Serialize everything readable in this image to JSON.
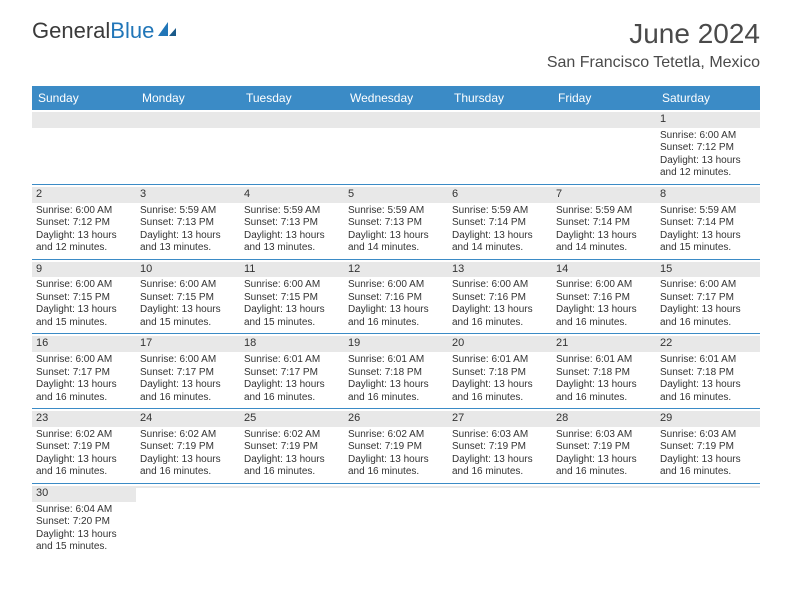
{
  "brand": {
    "part1": "General",
    "part2": "Blue"
  },
  "title": "June 2024",
  "location": "San Francisco Tetetla, Mexico",
  "colors": {
    "header_bg": "#3b8bc6",
    "header_text": "#ffffff",
    "daynum_bg": "#e8e8e8",
    "row_border": "#3b8bc6",
    "text": "#333333",
    "brand_blue": "#2176b8"
  },
  "weekdays": [
    "Sunday",
    "Monday",
    "Tuesday",
    "Wednesday",
    "Thursday",
    "Friday",
    "Saturday"
  ],
  "weeks": [
    [
      null,
      null,
      null,
      null,
      null,
      null,
      {
        "n": "1",
        "sunrise": "Sunrise: 6:00 AM",
        "sunset": "Sunset: 7:12 PM",
        "dl1": "Daylight: 13 hours",
        "dl2": "and 12 minutes."
      }
    ],
    [
      {
        "n": "2",
        "sunrise": "Sunrise: 6:00 AM",
        "sunset": "Sunset: 7:12 PM",
        "dl1": "Daylight: 13 hours",
        "dl2": "and 12 minutes."
      },
      {
        "n": "3",
        "sunrise": "Sunrise: 5:59 AM",
        "sunset": "Sunset: 7:13 PM",
        "dl1": "Daylight: 13 hours",
        "dl2": "and 13 minutes."
      },
      {
        "n": "4",
        "sunrise": "Sunrise: 5:59 AM",
        "sunset": "Sunset: 7:13 PM",
        "dl1": "Daylight: 13 hours",
        "dl2": "and 13 minutes."
      },
      {
        "n": "5",
        "sunrise": "Sunrise: 5:59 AM",
        "sunset": "Sunset: 7:13 PM",
        "dl1": "Daylight: 13 hours",
        "dl2": "and 14 minutes."
      },
      {
        "n": "6",
        "sunrise": "Sunrise: 5:59 AM",
        "sunset": "Sunset: 7:14 PM",
        "dl1": "Daylight: 13 hours",
        "dl2": "and 14 minutes."
      },
      {
        "n": "7",
        "sunrise": "Sunrise: 5:59 AM",
        "sunset": "Sunset: 7:14 PM",
        "dl1": "Daylight: 13 hours",
        "dl2": "and 14 minutes."
      },
      {
        "n": "8",
        "sunrise": "Sunrise: 5:59 AM",
        "sunset": "Sunset: 7:14 PM",
        "dl1": "Daylight: 13 hours",
        "dl2": "and 15 minutes."
      }
    ],
    [
      {
        "n": "9",
        "sunrise": "Sunrise: 6:00 AM",
        "sunset": "Sunset: 7:15 PM",
        "dl1": "Daylight: 13 hours",
        "dl2": "and 15 minutes."
      },
      {
        "n": "10",
        "sunrise": "Sunrise: 6:00 AM",
        "sunset": "Sunset: 7:15 PM",
        "dl1": "Daylight: 13 hours",
        "dl2": "and 15 minutes."
      },
      {
        "n": "11",
        "sunrise": "Sunrise: 6:00 AM",
        "sunset": "Sunset: 7:15 PM",
        "dl1": "Daylight: 13 hours",
        "dl2": "and 15 minutes."
      },
      {
        "n": "12",
        "sunrise": "Sunrise: 6:00 AM",
        "sunset": "Sunset: 7:16 PM",
        "dl1": "Daylight: 13 hours",
        "dl2": "and 16 minutes."
      },
      {
        "n": "13",
        "sunrise": "Sunrise: 6:00 AM",
        "sunset": "Sunset: 7:16 PM",
        "dl1": "Daylight: 13 hours",
        "dl2": "and 16 minutes."
      },
      {
        "n": "14",
        "sunrise": "Sunrise: 6:00 AM",
        "sunset": "Sunset: 7:16 PM",
        "dl1": "Daylight: 13 hours",
        "dl2": "and 16 minutes."
      },
      {
        "n": "15",
        "sunrise": "Sunrise: 6:00 AM",
        "sunset": "Sunset: 7:17 PM",
        "dl1": "Daylight: 13 hours",
        "dl2": "and 16 minutes."
      }
    ],
    [
      {
        "n": "16",
        "sunrise": "Sunrise: 6:00 AM",
        "sunset": "Sunset: 7:17 PM",
        "dl1": "Daylight: 13 hours",
        "dl2": "and 16 minutes."
      },
      {
        "n": "17",
        "sunrise": "Sunrise: 6:00 AM",
        "sunset": "Sunset: 7:17 PM",
        "dl1": "Daylight: 13 hours",
        "dl2": "and 16 minutes."
      },
      {
        "n": "18",
        "sunrise": "Sunrise: 6:01 AM",
        "sunset": "Sunset: 7:17 PM",
        "dl1": "Daylight: 13 hours",
        "dl2": "and 16 minutes."
      },
      {
        "n": "19",
        "sunrise": "Sunrise: 6:01 AM",
        "sunset": "Sunset: 7:18 PM",
        "dl1": "Daylight: 13 hours",
        "dl2": "and 16 minutes."
      },
      {
        "n": "20",
        "sunrise": "Sunrise: 6:01 AM",
        "sunset": "Sunset: 7:18 PM",
        "dl1": "Daylight: 13 hours",
        "dl2": "and 16 minutes."
      },
      {
        "n": "21",
        "sunrise": "Sunrise: 6:01 AM",
        "sunset": "Sunset: 7:18 PM",
        "dl1": "Daylight: 13 hours",
        "dl2": "and 16 minutes."
      },
      {
        "n": "22",
        "sunrise": "Sunrise: 6:01 AM",
        "sunset": "Sunset: 7:18 PM",
        "dl1": "Daylight: 13 hours",
        "dl2": "and 16 minutes."
      }
    ],
    [
      {
        "n": "23",
        "sunrise": "Sunrise: 6:02 AM",
        "sunset": "Sunset: 7:19 PM",
        "dl1": "Daylight: 13 hours",
        "dl2": "and 16 minutes."
      },
      {
        "n": "24",
        "sunrise": "Sunrise: 6:02 AM",
        "sunset": "Sunset: 7:19 PM",
        "dl1": "Daylight: 13 hours",
        "dl2": "and 16 minutes."
      },
      {
        "n": "25",
        "sunrise": "Sunrise: 6:02 AM",
        "sunset": "Sunset: 7:19 PM",
        "dl1": "Daylight: 13 hours",
        "dl2": "and 16 minutes."
      },
      {
        "n": "26",
        "sunrise": "Sunrise: 6:02 AM",
        "sunset": "Sunset: 7:19 PM",
        "dl1": "Daylight: 13 hours",
        "dl2": "and 16 minutes."
      },
      {
        "n": "27",
        "sunrise": "Sunrise: 6:03 AM",
        "sunset": "Sunset: 7:19 PM",
        "dl1": "Daylight: 13 hours",
        "dl2": "and 16 minutes."
      },
      {
        "n": "28",
        "sunrise": "Sunrise: 6:03 AM",
        "sunset": "Sunset: 7:19 PM",
        "dl1": "Daylight: 13 hours",
        "dl2": "and 16 minutes."
      },
      {
        "n": "29",
        "sunrise": "Sunrise: 6:03 AM",
        "sunset": "Sunset: 7:19 PM",
        "dl1": "Daylight: 13 hours",
        "dl2": "and 16 minutes."
      }
    ],
    [
      {
        "n": "30",
        "sunrise": "Sunrise: 6:04 AM",
        "sunset": "Sunset: 7:20 PM",
        "dl1": "Daylight: 13 hours",
        "dl2": "and 15 minutes."
      },
      null,
      null,
      null,
      null,
      null,
      null
    ]
  ]
}
